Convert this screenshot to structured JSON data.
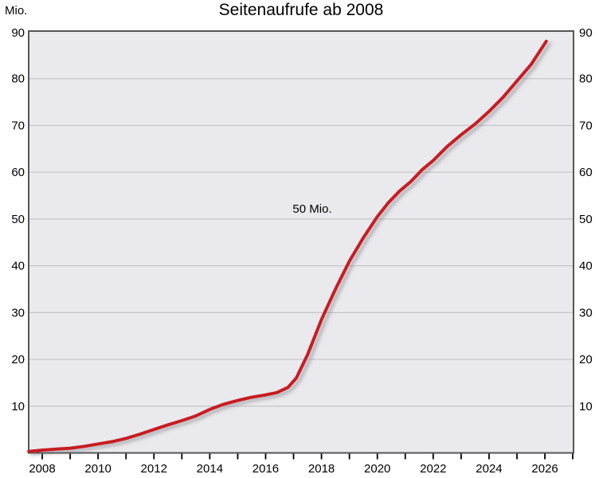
{
  "chart_data": {
    "type": "line",
    "title": "Seitenaufrufe ab 2008",
    "unit_label": "Mio.",
    "ylabel": "Mio.",
    "xlabel": "",
    "xlim": [
      2007.52,
      2027.05
    ],
    "ylim": [
      0,
      90
    ],
    "grid": true,
    "legend": "none",
    "y_ticks": [
      10,
      20,
      30,
      40,
      50,
      60,
      70,
      80,
      90
    ],
    "y_tick_sides": "both",
    "x_ticks_minor": [
      2008,
      2009,
      2010,
      2011,
      2012,
      2013,
      2014,
      2015,
      2016,
      2017,
      2018,
      2019,
      2020,
      2021,
      2022,
      2023,
      2024,
      2025,
      2026,
      2027
    ],
    "x_tick_labels": [
      "2008",
      "2010",
      "2012",
      "2014",
      "2016",
      "2018",
      "2020",
      "2022",
      "2024",
      "2026"
    ],
    "x_tick_label_years": [
      2008,
      2010,
      2012,
      2014,
      2016,
      2018,
      2020,
      2022,
      2024,
      2026
    ],
    "annotation": {
      "text": "50 Mio.",
      "x": 2017.67,
      "y": 52.2
    },
    "series": [
      {
        "name": "Seitenaufrufe",
        "color": "#c81e21",
        "points": [
          [
            2007.52,
            0.3
          ],
          [
            2008,
            0.6
          ],
          [
            2008.5,
            0.8
          ],
          [
            2009,
            1.0
          ],
          [
            2009.5,
            1.4
          ],
          [
            2010,
            1.9
          ],
          [
            2010.5,
            2.4
          ],
          [
            2011,
            3.1
          ],
          [
            2011.5,
            4.0
          ],
          [
            2012,
            5.0
          ],
          [
            2012.5,
            6.0
          ],
          [
            2013,
            6.9
          ],
          [
            2013.5,
            7.9
          ],
          [
            2014,
            9.3
          ],
          [
            2014.5,
            10.4
          ],
          [
            2015,
            11.2
          ],
          [
            2015.5,
            11.9
          ],
          [
            2016,
            12.4
          ],
          [
            2016.4,
            12.9
          ],
          [
            2016.8,
            14.0
          ],
          [
            2017.1,
            16.0
          ],
          [
            2017.5,
            21.0
          ],
          [
            2018,
            28.5
          ],
          [
            2018.5,
            35.0
          ],
          [
            2019,
            41.0
          ],
          [
            2019.5,
            46.0
          ],
          [
            2020,
            50.5
          ],
          [
            2020.4,
            53.5
          ],
          [
            2020.8,
            56.0
          ],
          [
            2021.2,
            58.0
          ],
          [
            2021.6,
            60.5
          ],
          [
            2022,
            62.5
          ],
          [
            2022.5,
            65.5
          ],
          [
            2023,
            68.0
          ],
          [
            2023.5,
            70.3
          ],
          [
            2024,
            73.0
          ],
          [
            2024.5,
            76.0
          ],
          [
            2025,
            79.5
          ],
          [
            2025.5,
            83.0
          ],
          [
            2026.05,
            88.0
          ]
        ]
      }
    ],
    "colors": {
      "plot_background": "#eaeaee",
      "gridline": "#c5c5c9",
      "plot_border": "#565658",
      "line": "#c81e21",
      "line_shadow": "rgba(110,110,115,0.5)",
      "text": "#000000"
    }
  }
}
